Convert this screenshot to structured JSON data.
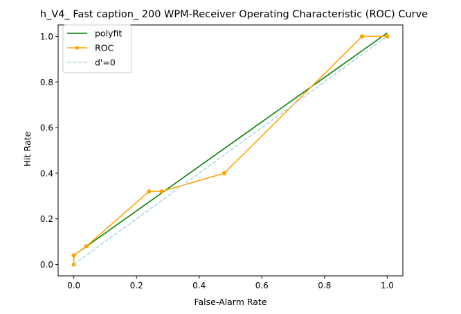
{
  "chart_data": {
    "type": "line",
    "title": "h_V4_ Fast caption_ 200 WPM-Receiver Operating Characteristic (ROC) Curve",
    "xlabel": "False-Alarm Rate",
    "ylabel": "Hit Rate",
    "xlim": [
      -0.05,
      1.05
    ],
    "ylim": [
      -0.05,
      1.05
    ],
    "xticks": [
      0.0,
      0.2,
      0.4,
      0.6,
      0.8,
      1.0
    ],
    "yticks": [
      0.0,
      0.2,
      0.4,
      0.6,
      0.8,
      1.0
    ],
    "tick_labels_x": [
      "0.0",
      "0.2",
      "0.4",
      "0.6",
      "0.8",
      "1.0"
    ],
    "tick_labels_y": [
      "0.0",
      "0.2",
      "0.4",
      "0.6",
      "0.8",
      "1.0"
    ],
    "grid": false,
    "legend_position": "top-left",
    "series": [
      {
        "name": "polyfit",
        "color": "#008000",
        "style": "solid",
        "markers": false,
        "x": [
          0.0,
          1.0
        ],
        "y": [
          0.04,
          1.015
        ]
      },
      {
        "name": "ROC",
        "color": "#ffa500",
        "style": "solid",
        "markers": true,
        "x": [
          0.0,
          0.0,
          0.04,
          0.24,
          0.28,
          0.48,
          0.92,
          1.0,
          1.0
        ],
        "y": [
          0.0,
          0.04,
          0.08,
          0.32,
          0.32,
          0.4,
          1.0,
          1.0,
          1.0
        ]
      },
      {
        "name": "d'=0",
        "color": "#add8e6",
        "style": "dashed",
        "markers": false,
        "x": [
          0.0,
          1.0
        ],
        "y": [
          0.0,
          1.0
        ]
      }
    ]
  }
}
